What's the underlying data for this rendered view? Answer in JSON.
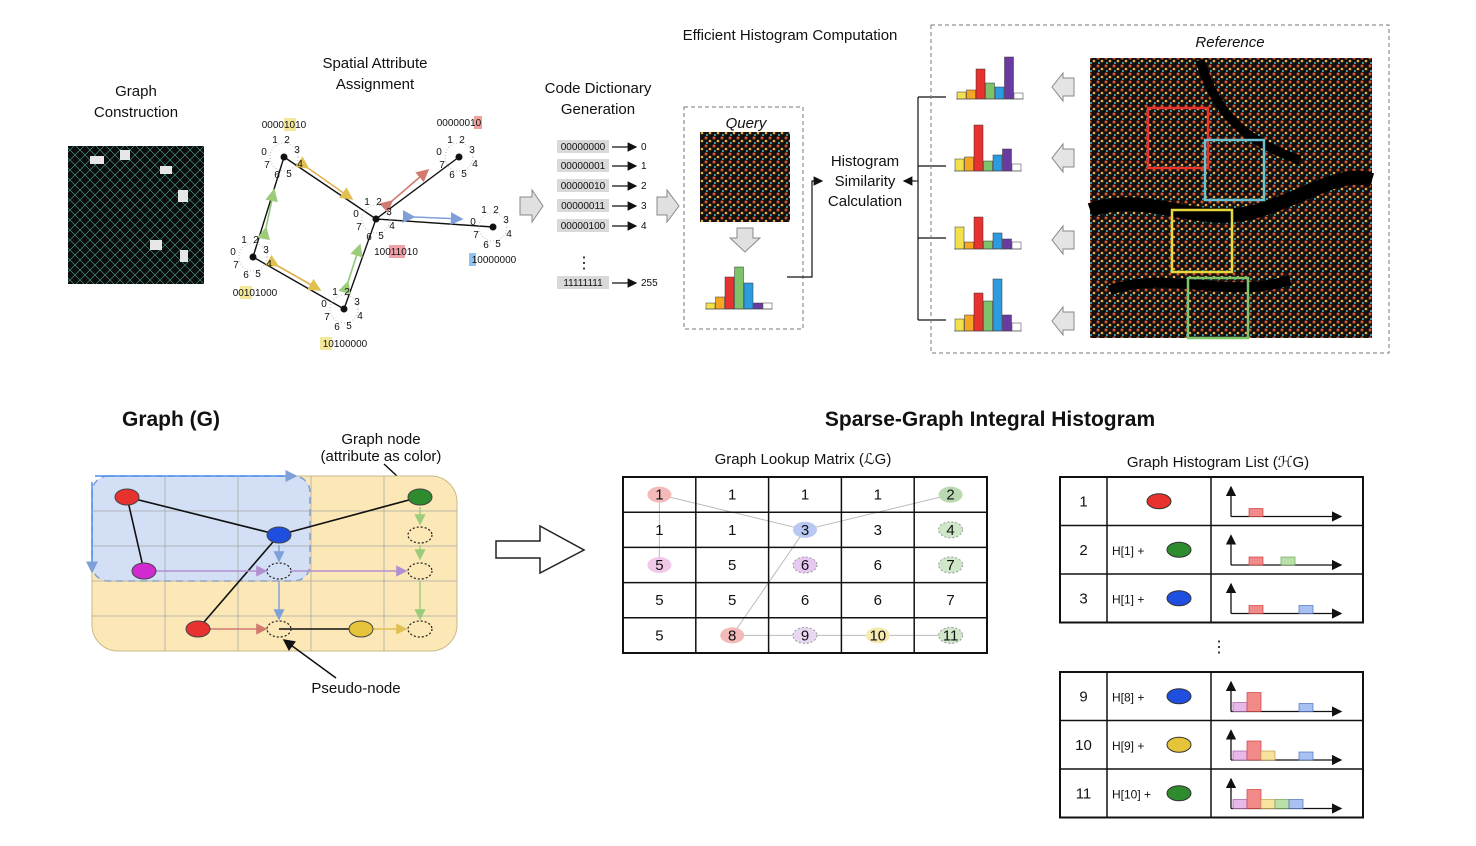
{
  "top": {
    "graph_construction": {
      "line1": "Graph",
      "line2": "Construction"
    },
    "spatial_attribute": {
      "line1": "Spatial Attribute",
      "line2": "Assignment",
      "codes": [
        "00001010",
        "00000010",
        "00101000",
        "10011010",
        "10000000",
        "10100000"
      ],
      "direction_digits": [
        "0",
        "1",
        "2",
        "3",
        "4",
        "5",
        "6",
        "7"
      ]
    },
    "code_dictionary": {
      "line1": "Code Dictionary",
      "line2": "Generation",
      "entries": [
        {
          "code": "00000000",
          "value": "0"
        },
        {
          "code": "00000001",
          "value": "1"
        },
        {
          "code": "00000010",
          "value": "2"
        },
        {
          "code": "00000011",
          "value": "3"
        },
        {
          "code": "00000100",
          "value": "4"
        },
        {
          "code": "11111111",
          "value": "255"
        }
      ],
      "ellipsis": "⋮"
    },
    "efficient_histogram": "Efficient Histogram Computation",
    "query_label": "Query",
    "histogram_similarity": {
      "line1": "Histogram",
      "line2": "Similarity",
      "line3": "Calculation"
    },
    "reference_label": "Reference",
    "colors": {
      "yellow": "#f2e14b",
      "orange": "#f5a623",
      "red": "#e8322f",
      "green": "#7cc36b",
      "blue": "#2d9be0",
      "purple": "#6a3aa2",
      "white": "#ffffff"
    }
  },
  "bottom": {
    "graph_title": "Graph (G)",
    "graph_node_label": {
      "line1": "Graph node",
      "line2": "(attribute as color)"
    },
    "pseudo_node_label": "Pseudo-node",
    "sgih_title": "Sparse-Graph Integral Histogram",
    "lookup_title": "Graph Lookup Matrix (ℒG)",
    "lookup_matrix": [
      [
        "1",
        "1",
        "1",
        "1",
        "2"
      ],
      [
        "1",
        "1",
        "3",
        "3",
        "4"
      ],
      [
        "5",
        "5",
        "6",
        "6",
        "7"
      ],
      [
        "5",
        "5",
        "6",
        "6",
        "7"
      ],
      [
        "5",
        "8",
        "9",
        "10",
        "11"
      ]
    ],
    "hist_list_title": "Graph Histogram List (ℋG)",
    "hist_list_top": [
      {
        "index": "1",
        "formula": "",
        "node_color": "#e8322f"
      },
      {
        "index": "2",
        "formula": "H[1] +",
        "node_color": "#2e8b2e"
      },
      {
        "index": "3",
        "formula": "H[1] +",
        "node_color": "#1f4fe0"
      }
    ],
    "hist_list_ellipsis": "⋮",
    "hist_list_bottom": [
      {
        "index": "9",
        "formula": "H[8] +",
        "node_color": "#1f4fe0"
      },
      {
        "index": "10",
        "formula": "H[9] +",
        "node_color": "#e6c43a"
      },
      {
        "index": "11",
        "formula": "H[10] +",
        "node_color": "#2e8b2e"
      }
    ],
    "node_colors": {
      "red": "#e8322f",
      "green": "#2e8b2e",
      "blue": "#1f4fe0",
      "magenta": "#d02ad0",
      "yellow": "#e6c43a"
    }
  }
}
